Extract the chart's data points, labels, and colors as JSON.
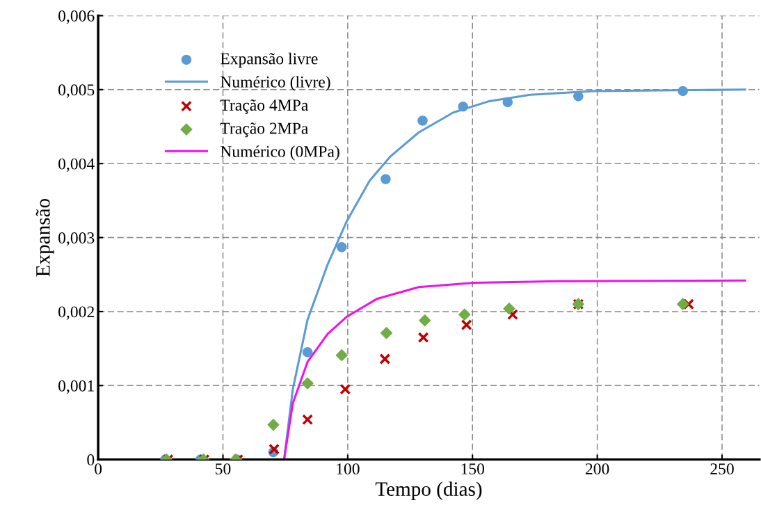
{
  "chart_data": {
    "type": "scatter",
    "xlabel": "Tempo (dias)",
    "ylabel": "Expansão",
    "xlim": [
      0,
      265
    ],
    "xticks": [
      0,
      50,
      100,
      150,
      200,
      250
    ],
    "ylim": [
      0,
      0.006
    ],
    "yticks": [
      {
        "value": 0,
        "label": "0"
      },
      {
        "value": 0.001,
        "label": "0,001"
      },
      {
        "value": 0.002,
        "label": "0,002"
      },
      {
        "value": 0.003,
        "label": "0,003"
      },
      {
        "value": 0.004,
        "label": "0,004"
      },
      {
        "value": 0.005,
        "label": "0,005"
      },
      {
        "value": 0.006,
        "label": "0,006"
      }
    ],
    "grid": true,
    "legend": "top left",
    "series": [
      {
        "name": "Expansão livre",
        "marker": "circle",
        "color": "#5b9bd5",
        "x": [
          26.9,
          41,
          55.6,
          70.2,
          83.9,
          97.6,
          115.2,
          130,
          146.2,
          164.1,
          192.4,
          234.3
        ],
        "values": [
          0,
          0,
          0,
          0.0001,
          0.00145,
          0.00287,
          0.00379,
          0.00458,
          0.00477,
          0.00483,
          0.00491,
          0.00498
        ]
      },
      {
        "name": "Numérico (livre)",
        "type": "line",
        "marker": "none",
        "line_style": "solid",
        "color": "#5b9bd5",
        "x": [
          0,
          74.5,
          78,
          83.9,
          92,
          99.6,
          108.8,
          117.2,
          128.4,
          142.3,
          156.3,
          173.1,
          198.3,
          259.2
        ],
        "values": [
          0,
          0,
          0.00095,
          0.00189,
          0.00264,
          0.00322,
          0.00377,
          0.0041,
          0.00442,
          0.00469,
          0.00484,
          0.00493,
          0.00498,
          0.005
        ]
      },
      {
        "name": "Tração 4MPa",
        "marker": "cross",
        "color": "#c00000",
        "x": [
          28,
          42.5,
          56,
          70.5,
          83.9,
          99,
          114.9,
          130.3,
          147.6,
          166.1,
          192.4,
          236.6
        ],
        "values": [
          0,
          0,
          0,
          0.00014,
          0.00054,
          0.00095,
          0.00136,
          0.00165,
          0.00182,
          0.00196,
          0.0021,
          0.0021
        ]
      },
      {
        "name": "Tração 2MPa",
        "marker": "diamond",
        "color": "#70ad47",
        "x": [
          27.4,
          42.2,
          55.1,
          70.2,
          83.9,
          97.6,
          115.5,
          130.9,
          146.8,
          164.7,
          192.4,
          234.3
        ],
        "values": [
          0,
          0,
          0,
          0.00047,
          0.00103,
          0.00141,
          0.00171,
          0.00188,
          0.00196,
          0.00204,
          0.0021,
          0.0021
        ]
      },
      {
        "name": "Numérico (0MPa)",
        "type": "line",
        "marker": "none",
        "line_style": "solid",
        "color": "#ee11ee",
        "x": [
          0,
          74.5,
          78,
          83.9,
          92,
          99.6,
          111.6,
          128.4,
          150.7,
          184.3,
          259.2
        ],
        "values": [
          0,
          0,
          0.00076,
          0.00132,
          0.0017,
          0.00193,
          0.00217,
          0.00233,
          0.00239,
          0.00241,
          0.00242
        ]
      }
    ]
  }
}
